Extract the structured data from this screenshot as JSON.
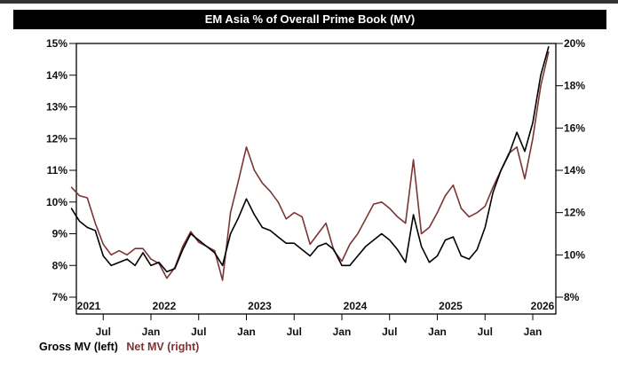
{
  "chart_data": {
    "type": "line",
    "title": "EM Asia % of Overall Prime Book (MV)",
    "x_year_labels": [
      "2021",
      "2022",
      "2023",
      "2024",
      "2025",
      "2026"
    ],
    "x_tick_labels": [
      {
        "t": 2021.5,
        "label": "Jul"
      },
      {
        "t": 2022,
        "label": "Jan"
      },
      {
        "t": 2022.5,
        "label": "Jul"
      },
      {
        "t": 2023,
        "label": "Jan"
      },
      {
        "t": 2023.5,
        "label": "Jul"
      },
      {
        "t": 2024,
        "label": "Jan"
      },
      {
        "t": 2024.5,
        "label": "Jul"
      },
      {
        "t": 2025,
        "label": "Jan"
      },
      {
        "t": 2025.5,
        "label": "Jul"
      },
      {
        "t": 2026,
        "label": "Jan"
      }
    ],
    "y_left": {
      "min": 7,
      "max": 15,
      "ticks": [
        "7%",
        "8%",
        "9%",
        "10%",
        "11%",
        "12%",
        "13%",
        "14%",
        "15%"
      ]
    },
    "y_right": {
      "min": 8,
      "max": 20,
      "ticks": [
        "8%",
        "10%",
        "12%",
        "14%",
        "16%",
        "18%",
        "20%"
      ]
    },
    "x": [
      "2021-03",
      "2021-04",
      "2021-05",
      "2021-06",
      "2021-07",
      "2021-08",
      "2021-09",
      "2021-10",
      "2021-11",
      "2021-12",
      "2022-01",
      "2022-02",
      "2022-03",
      "2022-04",
      "2022-05",
      "2022-06",
      "2022-07",
      "2022-08",
      "2022-09",
      "2022-10",
      "2022-11",
      "2022-12",
      "2023-01",
      "2023-02",
      "2023-03",
      "2023-04",
      "2023-05",
      "2023-06",
      "2023-07",
      "2023-08",
      "2023-09",
      "2023-10",
      "2023-11",
      "2023-12",
      "2024-01",
      "2024-02",
      "2024-03",
      "2024-04",
      "2024-05",
      "2024-06",
      "2024-07",
      "2024-08",
      "2024-09",
      "2024-10",
      "2024-11",
      "2024-12",
      "2025-01",
      "2025-02",
      "2025-03",
      "2025-04",
      "2025-05",
      "2025-06",
      "2025-07",
      "2025-08",
      "2025-09",
      "2025-10",
      "2025-11",
      "2025-12",
      "2026-01",
      "2026-02",
      "2026-03"
    ],
    "series": [
      {
        "name": "Gross MV (left)",
        "axis": "left",
        "color": "#000000",
        "values": [
          9.8,
          9.4,
          9.2,
          9.1,
          8.3,
          8.0,
          8.1,
          8.2,
          8.0,
          8.4,
          8.0,
          8.1,
          7.8,
          7.9,
          8.5,
          9.0,
          8.8,
          8.6,
          8.4,
          8.0,
          9.0,
          9.5,
          10.1,
          9.6,
          9.2,
          9.1,
          8.9,
          8.7,
          8.7,
          8.5,
          8.3,
          8.6,
          8.7,
          8.5,
          8.0,
          8.0,
          8.3,
          8.6,
          8.8,
          9.0,
          8.8,
          8.5,
          8.1,
          9.6,
          8.6,
          8.1,
          8.3,
          8.8,
          8.9,
          8.3,
          8.2,
          8.5,
          9.2,
          10.3,
          11.0,
          11.5,
          12.2,
          11.6,
          12.5,
          14.0,
          14.9
        ]
      },
      {
        "name": "Net MV (right)",
        "axis": "right",
        "color": "#7b3535",
        "values": [
          13.2,
          12.8,
          12.7,
          11.5,
          10.5,
          10.0,
          10.2,
          10.0,
          10.3,
          10.3,
          9.8,
          9.6,
          8.9,
          9.4,
          10.4,
          11.1,
          10.6,
          10.4,
          10.2,
          8.8,
          12.0,
          13.5,
          15.1,
          14.0,
          13.4,
          13.0,
          12.5,
          11.7,
          12.0,
          11.8,
          10.5,
          11.0,
          11.5,
          10.2,
          9.7,
          10.5,
          11.0,
          11.7,
          12.4,
          12.5,
          12.2,
          11.8,
          11.5,
          14.5,
          11.0,
          11.3,
          12.0,
          12.8,
          13.3,
          12.2,
          11.8,
          12.0,
          12.3,
          13.2,
          14.0,
          14.8,
          15.1,
          13.6,
          15.5,
          18.0,
          19.6
        ]
      }
    ],
    "legend_position": "bottom-left",
    "grid": false
  }
}
